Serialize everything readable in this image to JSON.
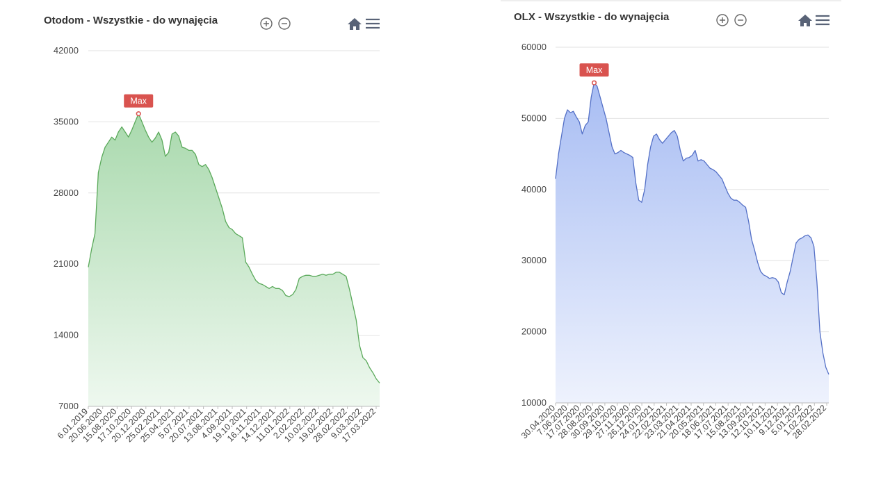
{
  "charts": [
    {
      "title": "Otodom - Wszystkie - do wynajęcia",
      "max_marker_label": "Max",
      "icons": [
        "zoom-in-icon",
        "zoom-out-icon",
        "home-icon",
        "menu-icon"
      ],
      "colors": {
        "line": "#5aa95a",
        "fill_top": "#a9d9ad",
        "fill_bottom": "#eef8ef",
        "marker": "#d9534f",
        "grid": "#e2e2e2"
      }
    },
    {
      "title": "OLX - Wszystkie - do wynajęcia",
      "max_marker_label": "Max",
      "icons": [
        "zoom-in-icon",
        "zoom-out-icon",
        "home-icon",
        "menu-icon"
      ],
      "colors": {
        "line": "#5470c6",
        "fill_top": "#a8bdf3",
        "fill_bottom": "#eef2fd",
        "marker": "#d9534f",
        "grid": "#e2e2e2"
      }
    }
  ],
  "chart_data": [
    {
      "type": "area",
      "title": "Otodom - Wszystkie - do wynajęcia",
      "xlabel": "",
      "ylabel": "",
      "ylim": [
        7000,
        42000
      ],
      "y_ticks": [
        7000,
        14000,
        21000,
        28000,
        35000,
        42000
      ],
      "x_tick_labels": [
        "6.01.2019",
        "20.06.2020",
        "15.08.2020",
        "17.10.2020",
        "20.12.2020",
        "25.02.2021",
        "25.04.2021",
        "5.07.2021",
        "20.07.2021",
        "13.08.2021",
        "4.09.2021",
        "19.10.2021",
        "16.11.2021",
        "14.12.2021",
        "11.01.2022",
        "2.02.2022",
        "10.02.2022",
        "19.02.2022",
        "28.02.2022",
        "9.03.2022",
        "17.03.2022"
      ],
      "grid": true,
      "max_marker": {
        "label": "Max",
        "value": 35800
      },
      "series": [
        {
          "values": [
            20700,
            22500,
            24000,
            30000,
            31500,
            32500,
            33000,
            33500,
            33200,
            34000,
            34500,
            34000,
            33500,
            34200,
            35000,
            35800,
            35000,
            34200,
            33500,
            33000,
            33400,
            34000,
            33200,
            31600,
            32000,
            33800,
            34000,
            33600,
            32500,
            32400,
            32200,
            32200,
            31800,
            30800,
            30600,
            30800,
            30300,
            29500,
            28500,
            27500,
            26500,
            25200,
            24600,
            24400,
            24000,
            23800,
            23600,
            21200,
            20700,
            20000,
            19400,
            19100,
            19000,
            18800,
            18600,
            18800,
            18600,
            18600,
            18400,
            17900,
            17800,
            18000,
            18500,
            19600,
            19800,
            19900,
            19900,
            19800,
            19800,
            19900,
            20000,
            19900,
            20000,
            20000,
            20200,
            20200,
            20000,
            19800,
            18500,
            17000,
            15500,
            13000,
            11800,
            11500,
            10800,
            10300,
            9700,
            9300
          ]
        }
      ]
    },
    {
      "type": "area",
      "title": "OLX - Wszystkie - do wynajęcia",
      "xlabel": "",
      "ylabel": "",
      "ylim": [
        10000,
        60000
      ],
      "y_ticks": [
        10000,
        20000,
        30000,
        40000,
        50000,
        60000
      ],
      "x_tick_labels": [
        "30.04.2020",
        "7.06.2020",
        "17.07.2020",
        "28.08.2020",
        "30.09.2020",
        "29.10.2020",
        "27.11.2020",
        "26.12.2020",
        "24.01.2021",
        "22.02.2021",
        "23.03.2021",
        "21.04.2021",
        "20.05.2021",
        "18.06.2021",
        "17.07.2021",
        "15.08.2021",
        "13.09.2021",
        "12.10.2021",
        "10.11.2021",
        "9.12.2021",
        "5.01.2022",
        "1.02.2022",
        "28.02.2022"
      ],
      "grid": true,
      "max_marker": {
        "label": "Max",
        "value": 55400
      },
      "series": [
        {
          "values": [
            41500,
            45000,
            47500,
            50000,
            51200,
            50800,
            51000,
            50200,
            49500,
            47800,
            49000,
            49500,
            53000,
            55000,
            54500,
            53000,
            51500,
            50000,
            48000,
            46000,
            45000,
            45200,
            45500,
            45200,
            45000,
            44800,
            44500,
            41000,
            38500,
            38200,
            40000,
            43500,
            46000,
            47500,
            47800,
            47000,
            46500,
            47000,
            47500,
            48000,
            48300,
            47500,
            45500,
            44000,
            44400,
            44500,
            44800,
            45500,
            44000,
            44200,
            44000,
            43500,
            43000,
            42800,
            42500,
            42000,
            41500,
            40500,
            39500,
            38800,
            38500,
            38500,
            38200,
            37800,
            37500,
            35500,
            33000,
            31500,
            29800,
            28500,
            28000,
            27800,
            27500,
            27600,
            27500,
            27000,
            25500,
            25200,
            27000,
            28500,
            30500,
            32500,
            33000,
            33200,
            33500,
            33600,
            33200,
            32000,
            27000,
            20000,
            17000,
            15000,
            14000
          ]
        }
      ]
    }
  ]
}
